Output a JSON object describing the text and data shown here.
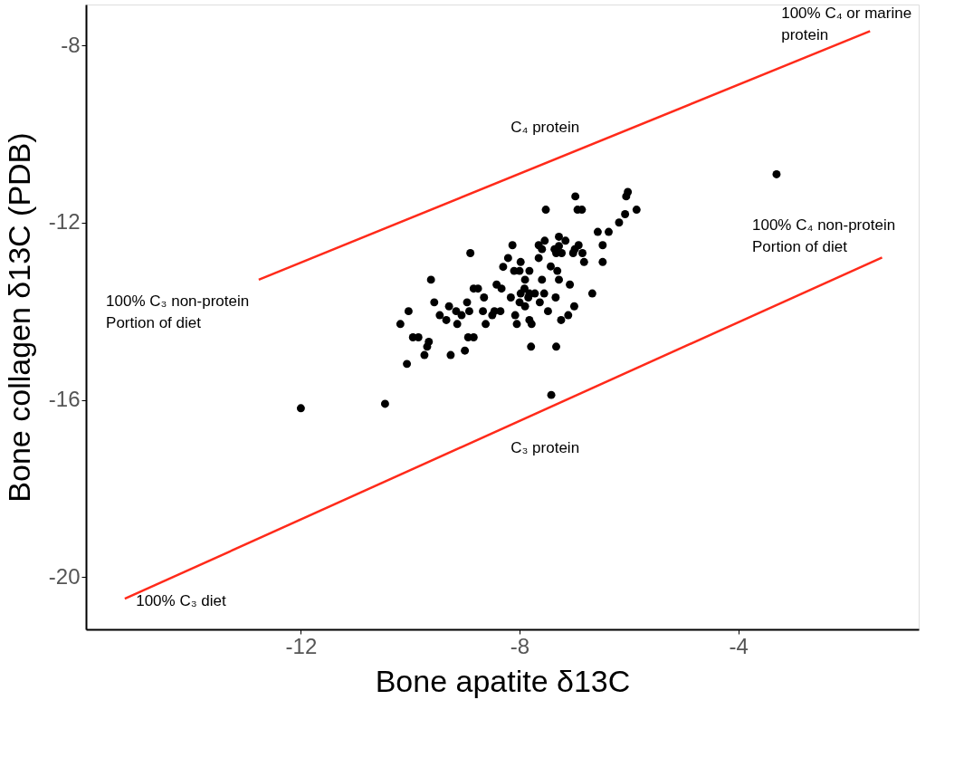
{
  "chart_data": {
    "type": "scatter",
    "xlabel": "Bone apatite δ13C",
    "ylabel": "Bone collagen δ13C (PDB)",
    "xlim": [
      -15.93,
      -0.7
    ],
    "ylim": [
      -21.18,
      -7.08
    ],
    "xticks": [
      -12,
      -8,
      -4
    ],
    "yticks": [
      -20,
      -16,
      -12,
      -8
    ],
    "grid": false,
    "legend": false,
    "marker": "circle",
    "series": [
      {
        "color": "#000000",
        "x": [
          -12.0,
          -10.46,
          -3.3,
          -7.42,
          -6.98,
          -6.02,
          -6.05,
          -7.52,
          -6.94,
          -6.86,
          -5.86,
          -6.07,
          -6.18,
          -6.57,
          -6.37,
          -7.28,
          -7.54,
          -7.65,
          -7.16,
          -8.13,
          -6.48,
          -7.28,
          -6.92,
          -7.59,
          -7.36,
          -6.99,
          -6.85,
          -7.02,
          -7.23,
          -7.33,
          -8.9,
          -7.65,
          -8.21,
          -7.98,
          -6.82,
          -6.48,
          -7.43,
          -8.3,
          -8.1,
          -8.0,
          -7.31,
          -7.82,
          -9.62,
          -7.9,
          -7.59,
          -7.28,
          -7.08,
          -8.42,
          -8.33,
          -8.84,
          -8.76,
          -7.91,
          -7.98,
          -7.82,
          -7.72,
          -7.55,
          -6.67,
          -8.65,
          -8.16,
          -7.34,
          -7.84,
          -9.56,
          -8.96,
          -8.0,
          -7.63,
          -10.03,
          -9.29,
          -9.16,
          -8.92,
          -8.67,
          -8.46,
          -8.35,
          -7.9,
          -7.0,
          -7.48,
          -9.46,
          -9.06,
          -8.5,
          -8.08,
          -7.11,
          -9.34,
          -7.82,
          -7.24,
          -10.18,
          -9.14,
          -8.62,
          -8.05,
          -7.78,
          -9.95,
          -9.85,
          -8.94,
          -8.84,
          -9.66,
          -9.69,
          -9.74,
          -9.26,
          -9.0,
          -7.79,
          -7.33,
          -10.06
        ],
        "values": [
          -16.19,
          -16.09,
          -10.91,
          -15.89,
          -11.41,
          -11.31,
          -11.41,
          -11.71,
          -11.71,
          -11.71,
          -11.71,
          -11.81,
          -12.0,
          -12.21,
          -12.21,
          -12.32,
          -12.41,
          -12.51,
          -12.41,
          -12.51,
          -12.51,
          -12.53,
          -12.51,
          -12.6,
          -12.6,
          -12.6,
          -12.69,
          -12.69,
          -12.69,
          -12.69,
          -12.69,
          -12.8,
          -12.8,
          -12.89,
          -12.89,
          -12.89,
          -12.99,
          -13.0,
          -13.09,
          -13.09,
          -13.09,
          -13.09,
          -13.29,
          -13.29,
          -13.29,
          -13.29,
          -13.4,
          -13.4,
          -13.49,
          -13.49,
          -13.49,
          -13.49,
          -13.6,
          -13.6,
          -13.6,
          -13.6,
          -13.6,
          -13.69,
          -13.69,
          -13.69,
          -13.69,
          -13.8,
          -13.8,
          -13.8,
          -13.8,
          -14.0,
          -13.89,
          -14.0,
          -14.0,
          -14.0,
          -14.0,
          -14.0,
          -13.89,
          -13.89,
          -14.0,
          -14.09,
          -14.09,
          -14.09,
          -14.09,
          -14.09,
          -14.2,
          -14.2,
          -14.2,
          -14.29,
          -14.29,
          -14.29,
          -14.29,
          -14.29,
          -14.59,
          -14.59,
          -14.59,
          -14.59,
          -14.69,
          -14.8,
          -14.99,
          -14.99,
          -14.89,
          -14.8,
          -14.8,
          -15.19
        ]
      },
      {
        "type": "line",
        "color": "#ff2a1a",
        "marker": "none",
        "line_style": "solid",
        "x": [
          -12.77,
          -1.59
        ],
        "values": [
          -13.29,
          -7.68
        ]
      },
      {
        "type": "line",
        "color": "#ff2a1a",
        "marker": "none",
        "line_style": "solid",
        "x": [
          -15.22,
          -1.37
        ],
        "values": [
          -20.49,
          -12.79
        ]
      }
    ],
    "annotations": [
      "100% C₄ or marine\nprotein",
      "C₄ protein",
      "100% C₃ non-protein\nPortion of diet",
      "100% C₄ non-protein\nPortion of diet",
      "C₃ protein",
      "100% C₃ diet"
    ]
  }
}
